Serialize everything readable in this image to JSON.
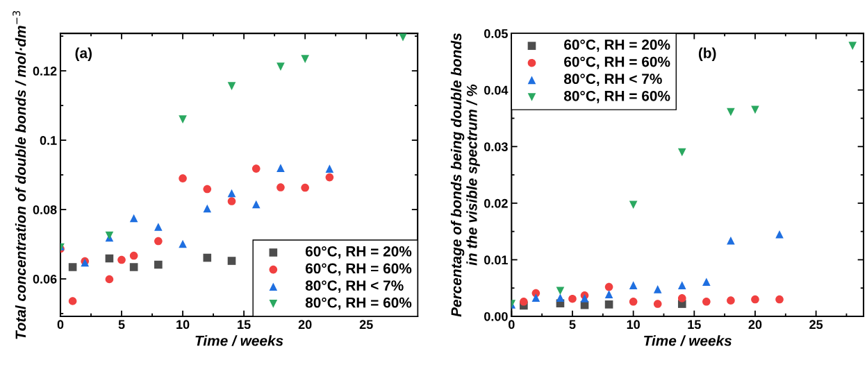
{
  "chart_data": [
    {
      "type": "scatter",
      "ylabel": "Total concentration of double bonds / mol·dm$^{−3}$",
      "xlabel": "Time / weeks",
      "annotations": [
        "(a)"
      ],
      "xlim": [
        0,
        29.2
      ],
      "xticks": [
        0,
        5,
        10,
        15,
        20,
        25
      ],
      "ylim": [
        0.0492,
        0.1308
      ],
      "yticks": [
        0.06,
        0.08,
        0.1,
        0.12
      ],
      "grid": false,
      "legend": "bottom right",
      "series": [
        {
          "name": "60°C, RH = 20%",
          "color": "#4d4d4d",
          "marker": "square",
          "x": [
            1,
            4,
            6,
            8,
            12,
            14
          ],
          "values": [
            0.0634,
            0.0659,
            0.0634,
            0.0641,
            0.0661,
            0.0652
          ]
        },
        {
          "name": "60°C, RH = 60%",
          "color": "#f04040",
          "marker": "circle",
          "x": [
            0,
            1,
            2,
            4,
            5,
            6,
            8,
            10,
            12,
            14,
            16,
            18,
            20,
            22
          ],
          "values": [
            0.0687,
            0.0536,
            0.0651,
            0.0599,
            0.0655,
            0.0667,
            0.0709,
            0.089,
            0.0859,
            0.0824,
            0.0918,
            0.0864,
            0.0863,
            0.0893
          ]
        },
        {
          "name": "80°C, RH < 7%",
          "color": "#1f6fe0",
          "marker": "triangle",
          "x": [
            0,
            2,
            4,
            6,
            8,
            10,
            12,
            14,
            16,
            18,
            22
          ],
          "values": [
            0.0694,
            0.0647,
            0.0719,
            0.0775,
            0.075,
            0.0701,
            0.0803,
            0.0847,
            0.0815,
            0.092,
            0.0918
          ]
        },
        {
          "name": "80°C, RH = 60%",
          "color": "#2aa860",
          "marker": "triangle_down",
          "x": [
            0,
            4,
            10,
            14,
            18,
            20,
            28
          ],
          "values": [
            0.0691,
            0.0725,
            0.106,
            0.1156,
            0.1212,
            0.1234,
            0.1297
          ]
        }
      ]
    },
    {
      "type": "scatter",
      "ylabel": "Percentage of bonds being double bonds\nin the visible spectrum / %",
      "xlabel": "Time / weeks",
      "annotations": [
        "(b)"
      ],
      "xlim": [
        0,
        28.9
      ],
      "xticks": [
        0,
        5,
        10,
        15,
        20,
        25
      ],
      "ylim": [
        0,
        0.05
      ],
      "yticks": [
        {
          "value": 0,
          "label": "0.00"
        },
        0.01,
        0.02,
        0.03,
        0.04,
        0.05
      ],
      "grid": false,
      "legend": "top left",
      "series": [
        {
          "name": "60°C, RH = 20%",
          "color": "#4d4d4d",
          "marker": "square",
          "x": [
            1,
            4,
            6,
            8,
            14
          ],
          "values": [
            0.0019,
            0.0023,
            0.002,
            0.0021,
            0.0022
          ]
        },
        {
          "name": "60°C, RH = 60%",
          "color": "#f04040",
          "marker": "circle",
          "x": [
            1,
            2,
            5,
            6,
            8,
            10,
            12,
            14,
            16,
            18,
            20,
            22
          ],
          "values": [
            0.0026,
            0.0041,
            0.0031,
            0.0037,
            0.0052,
            0.0026,
            0.0022,
            0.0032,
            0.0026,
            0.0028,
            0.003,
            0.003
          ]
        },
        {
          "name": "80°C, RH < 7%",
          "color": "#1f6fe0",
          "marker": "triangle",
          "x": [
            0,
            2,
            4,
            6,
            8,
            10,
            12,
            14,
            16,
            18,
            22
          ],
          "values": [
            0.0021,
            0.0033,
            0.0033,
            0.0032,
            0.0039,
            0.0055,
            0.0048,
            0.0055,
            0.0061,
            0.0134,
            0.0145
          ]
        },
        {
          "name": "80°C, RH = 60%",
          "color": "#2aa860",
          "marker": "triangle_down",
          "x": [
            0,
            4,
            10,
            14,
            18,
            20,
            28
          ],
          "values": [
            0.0022,
            0.0045,
            0.0197,
            0.029,
            0.0361,
            0.0365,
            0.0478
          ]
        }
      ]
    }
  ]
}
